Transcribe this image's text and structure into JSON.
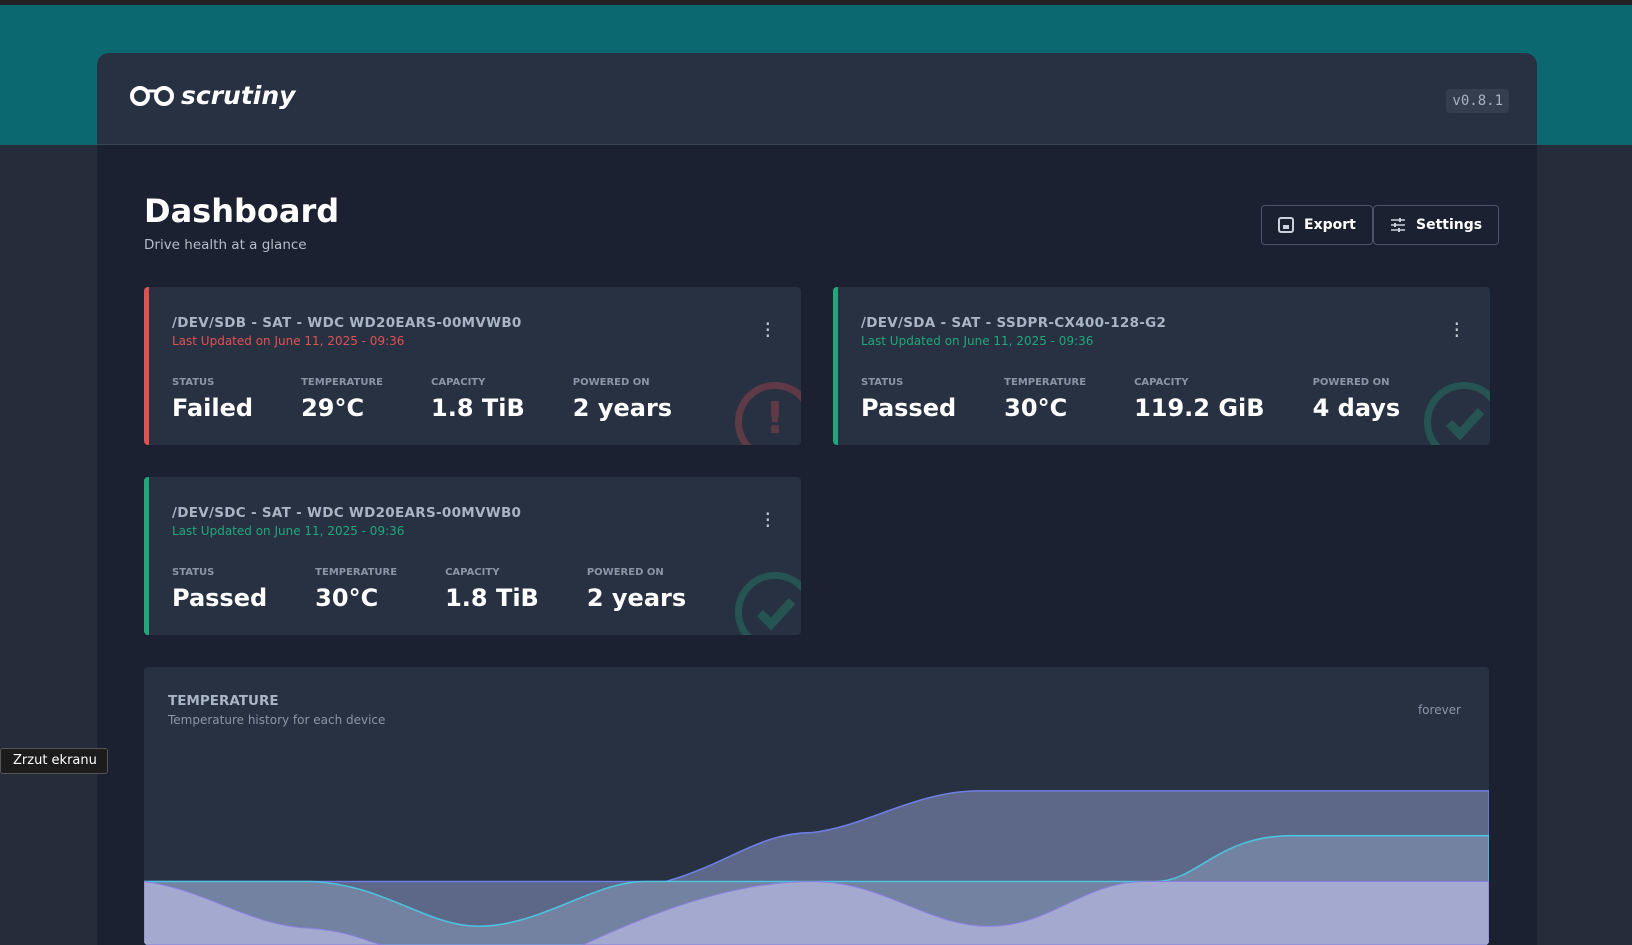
{
  "header": {
    "logo": "scrutiny",
    "version": "v0.8.1"
  },
  "page": {
    "title": "Dashboard",
    "subtitle": "Drive health at a glance",
    "buttons": [
      "Export",
      "Settings"
    ]
  },
  "devices": [
    {
      "name": "/DEV/SDB - SAT - WDC WD20EARS-00MVWB0",
      "updated": "Last Updated on June 11, 2025 - 09:36",
      "color": "#e05252",
      "icon": "alert",
      "stats": [
        {
          "label": "STATUS",
          "value": "Failed"
        },
        {
          "label": "TEMPERATURE",
          "value": "29°C"
        },
        {
          "label": "CAPACITY",
          "value": "1.8 TiB"
        },
        {
          "label": "POWERED ON",
          "value": "2 years"
        }
      ]
    },
    {
      "name": "/DEV/SDA - SAT - SSDPR-CX400-128-G2",
      "updated": "Last Updated on June 11, 2025 - 09:36",
      "color": "#22a77a",
      "icon": "check",
      "stats": [
        {
          "label": "STATUS",
          "value": "Passed"
        },
        {
          "label": "TEMPERATURE",
          "value": "30°C"
        },
        {
          "label": "CAPACITY",
          "value": "119.2 GiB"
        },
        {
          "label": "POWERED ON",
          "value": "4 days"
        }
      ]
    },
    {
      "name": "/DEV/SDC - SAT - WDC WD20EARS-00MVWB0",
      "updated": "Last Updated on June 11, 2025 - 09:36",
      "color": "#22a77a",
      "icon": "check",
      "stats": [
        {
          "label": "STATUS",
          "value": "Passed"
        },
        {
          "label": "TEMPERATURE",
          "value": "30°C"
        },
        {
          "label": "CAPACITY",
          "value": "1.8 TiB"
        },
        {
          "label": "POWERED ON",
          "value": "2 years"
        }
      ]
    }
  ],
  "temperature_chart": {
    "title": "TEMPERATURE",
    "subtitle": "Temperature history for each device",
    "range": "forever"
  },
  "tooltip": "Zrzut ekranu"
}
